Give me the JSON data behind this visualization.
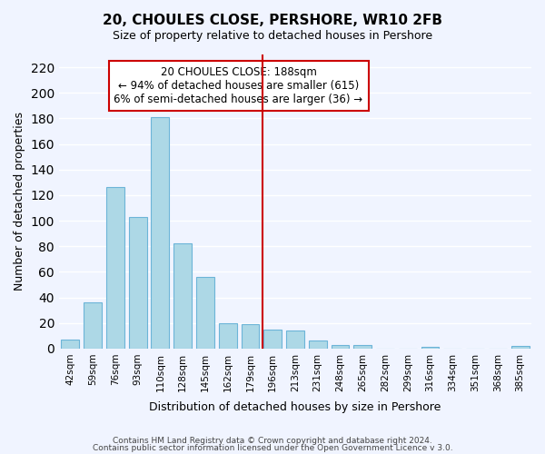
{
  "title": "20, CHOULES CLOSE, PERSHORE, WR10 2FB",
  "subtitle": "Size of property relative to detached houses in Pershore",
  "xlabel": "Distribution of detached houses by size in Pershore",
  "ylabel": "Number of detached properties",
  "bar_color": "#add8e6",
  "bar_edge_color": "#6cb4d8",
  "categories": [
    "42sqm",
    "59sqm",
    "76sqm",
    "93sqm",
    "110sqm",
    "128sqm",
    "145sqm",
    "162sqm",
    "179sqm",
    "196sqm",
    "213sqm",
    "231sqm",
    "248sqm",
    "265sqm",
    "282sqm",
    "299sqm",
    "316sqm",
    "334sqm",
    "351sqm",
    "368sqm",
    "385sqm"
  ],
  "values": [
    7,
    36,
    126,
    103,
    181,
    82,
    56,
    20,
    19,
    15,
    14,
    6,
    3,
    3,
    0,
    0,
    1,
    0,
    0,
    0,
    2
  ],
  "ylim": [
    0,
    230
  ],
  "yticks": [
    0,
    20,
    40,
    60,
    80,
    100,
    120,
    140,
    160,
    180,
    200,
    220
  ],
  "vline_x": 9.5,
  "vline_color": "#cc0000",
  "annotation_title": "20 CHOULES CLOSE: 188sqm",
  "annotation_line1": "← 94% of detached houses are smaller (615)",
  "annotation_line2": "6% of semi-detached houses are larger (36) →",
  "annotation_box_color": "#ffffff",
  "annotation_box_edge": "#cc0000",
  "footer1": "Contains HM Land Registry data © Crown copyright and database right 2024.",
  "footer2": "Contains public sector information licensed under the Open Government Licence v 3.0.",
  "background_color": "#f0f4ff",
  "grid_color": "#ffffff"
}
